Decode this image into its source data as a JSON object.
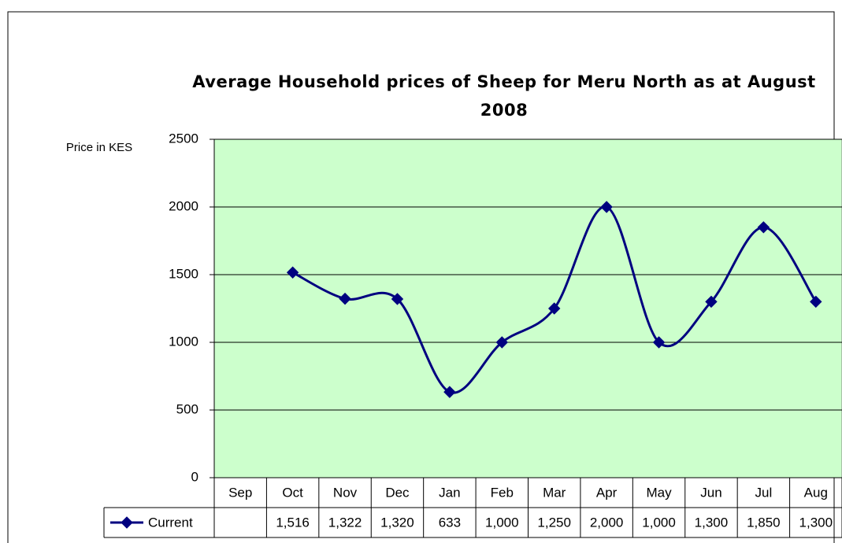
{
  "chart_data": {
    "type": "line",
    "title": "Average Household prices of Sheep for Meru North as at August 2008",
    "y_axis_label": "Price in KES",
    "categories": [
      "Sep",
      "Oct",
      "Nov",
      "Dec",
      "Jan",
      "Feb",
      "Mar",
      "Apr",
      "May",
      "Jun",
      "Jul",
      "Aug"
    ],
    "series": [
      {
        "name": "Current",
        "color": "#000080",
        "values": [
          null,
          1516,
          1322,
          1320,
          633,
          1000,
          1250,
          2000,
          1000,
          1300,
          1850,
          1300
        ],
        "value_labels": [
          null,
          "1,516",
          "1,322",
          "1,320",
          "633",
          "1,000",
          "1,250",
          "2,000",
          "1,000",
          "1,300",
          "1,850",
          "1,300"
        ]
      }
    ],
    "ylim": [
      0,
      2500
    ],
    "yticks": [
      0,
      500,
      1000,
      1500,
      2000,
      2500
    ],
    "grid": true,
    "smooth": true,
    "plot_background": "#ccffcc",
    "data_table": true
  }
}
